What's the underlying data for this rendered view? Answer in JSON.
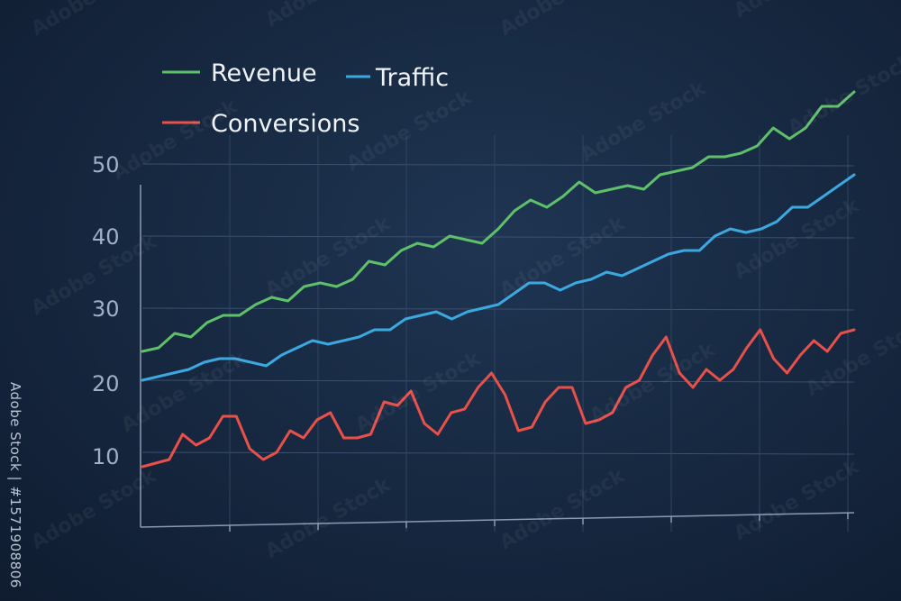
{
  "chart_data": {
    "type": "line",
    "title": "",
    "xlabel": "",
    "ylabel": "",
    "ylim": [
      2,
      60
    ],
    "yticks": [
      "50",
      "40",
      "30",
      "20",
      "10"
    ],
    "ytick_values": [
      50,
      40,
      30,
      20,
      10
    ],
    "grid": true,
    "legend": "top-left",
    "series": [
      {
        "name": "Revenue",
        "color": "#5fc06a",
        "values": [
          24.0,
          24.5,
          26.5,
          26.0,
          28.0,
          29.0,
          29.0,
          30.5,
          31.5,
          31.0,
          33.0,
          33.5,
          33.0,
          34.0,
          36.5,
          36.0,
          38.0,
          39.0,
          38.5,
          40.0,
          39.5,
          39.0,
          41.0,
          43.5,
          45.0,
          44.0,
          45.5,
          47.5,
          46.0,
          46.5,
          47.0,
          46.5,
          48.5,
          49.0,
          49.5,
          51.0,
          51.0,
          51.5,
          52.5,
          55.0,
          53.5,
          55.0,
          58.0,
          58.0,
          60.0
        ]
      },
      {
        "name": "Traffic",
        "color": "#3ca8e0",
        "values": [
          20.0,
          20.5,
          21.0,
          21.5,
          22.5,
          23.0,
          23.0,
          22.5,
          22.0,
          23.5,
          24.5,
          25.5,
          25.0,
          25.5,
          26.0,
          27.0,
          27.0,
          28.5,
          29.0,
          29.5,
          28.5,
          29.5,
          30.0,
          30.5,
          32.0,
          33.5,
          33.5,
          32.5,
          33.5,
          34.0,
          35.0,
          34.5,
          35.5,
          36.5,
          37.5,
          38.0,
          38.0,
          40.0,
          41.0,
          40.5,
          41.0,
          42.0,
          44.0,
          44.0,
          45.5,
          47.0,
          48.5
        ]
      },
      {
        "name": "Conversions",
        "color": "#e8504a",
        "values": [
          8.0,
          8.5,
          9.0,
          12.5,
          11.0,
          12.0,
          15.0,
          15.0,
          10.5,
          9.0,
          10.0,
          13.0,
          12.0,
          14.5,
          15.5,
          12.0,
          12.0,
          12.5,
          17.0,
          16.5,
          18.5,
          14.0,
          12.5,
          15.5,
          16.0,
          19.0,
          21.0,
          18.0,
          13.0,
          13.5,
          17.0,
          19.0,
          19.0,
          14.0,
          14.5,
          15.5,
          19.0,
          20.0,
          23.5,
          26.0,
          21.0,
          19.0,
          21.5,
          20.0,
          21.5,
          24.5,
          27.0,
          23.0,
          21.0,
          23.5,
          25.5,
          24.0,
          26.5,
          27.0
        ]
      }
    ]
  },
  "watermark_text": "Adobe Stock",
  "side_id": "Adobe Stock | #1571908806"
}
